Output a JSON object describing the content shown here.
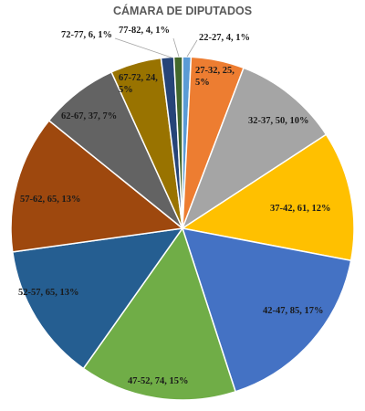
{
  "chart_data": {
    "type": "pie",
    "title": "CÁMARA DE DIPUTADOS",
    "slices": [
      {
        "category": "22-27",
        "value": 4,
        "percent": "1%",
        "label": "22-27, 4, 1%",
        "color": "#5b9bd5"
      },
      {
        "category": "27-32",
        "value": 25,
        "percent": "5%",
        "label": "27-32, 25, 5%",
        "color": "#ed7d31"
      },
      {
        "category": "32-37",
        "value": 50,
        "percent": "10%",
        "label": "32-37, 50, 10%",
        "color": "#a5a5a5"
      },
      {
        "category": "37-42",
        "value": 61,
        "percent": "12%",
        "label": "37-42, 61, 12%",
        "color": "#ffc000"
      },
      {
        "category": "42-47",
        "value": 85,
        "percent": "17%",
        "label": "42-47, 85, 17%",
        "color": "#4472c4"
      },
      {
        "category": "47-52",
        "value": 74,
        "percent": "15%",
        "label": "47-52, 74, 15%",
        "color": "#70ad47"
      },
      {
        "category": "52-57",
        "value": 65,
        "percent": "13%",
        "label": "52-57, 65, 13%",
        "color": "#255e91"
      },
      {
        "category": "57-62",
        "value": 65,
        "percent": "13%",
        "label": "57-62, 65, 13%",
        "color": "#9e480e"
      },
      {
        "category": "62-67",
        "value": 37,
        "percent": "7%",
        "label": "62-67, 37, 7%",
        "color": "#636363"
      },
      {
        "category": "67-72",
        "value": 24,
        "percent": "5%",
        "label": "67-72, 24, 5%",
        "color": "#997300"
      },
      {
        "category": "72-77",
        "value": 6,
        "percent": "1%",
        "label": "72-77, 6, 1%",
        "color": "#264478"
      },
      {
        "category": "77-82",
        "value": 4,
        "percent": "1%",
        "label": "77-82, 4, 1%",
        "color": "#43682b"
      }
    ]
  }
}
